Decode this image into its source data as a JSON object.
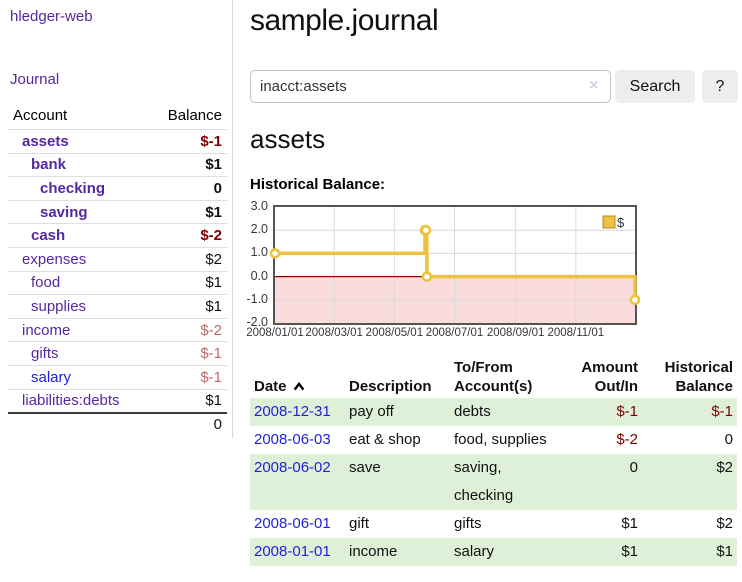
{
  "brand": "hledger-web",
  "nav": {
    "journal": "Journal"
  },
  "sidebar": {
    "header": {
      "account": "Account",
      "balance": "Balance"
    },
    "accounts": [
      {
        "name": "assets",
        "indent": 1,
        "bold": true,
        "link_color": "purple",
        "balance": "$-1",
        "balance_class": "neg-strong"
      },
      {
        "name": "bank",
        "indent": 2,
        "bold": true,
        "link_color": "purple",
        "balance": "$1",
        "balance_class": ""
      },
      {
        "name": "checking",
        "indent": 3,
        "bold": true,
        "link_color": "purple",
        "balance": "0",
        "balance_class": ""
      },
      {
        "name": "saving",
        "indent": 3,
        "bold": true,
        "link_color": "purple",
        "balance": "$1",
        "balance_class": ""
      },
      {
        "name": "cash",
        "indent": 2,
        "bold": true,
        "link_color": "purple",
        "balance": "$-2",
        "balance_class": "neg-strong"
      },
      {
        "name": "expenses",
        "indent": 1,
        "bold": false,
        "link_color": "purple",
        "balance": "$2",
        "balance_class": ""
      },
      {
        "name": "food",
        "indent": 2,
        "bold": false,
        "link_color": "purple",
        "balance": "$1",
        "balance_class": ""
      },
      {
        "name": "supplies",
        "indent": 2,
        "bold": false,
        "link_color": "purple",
        "balance": "$1",
        "balance_class": ""
      },
      {
        "name": "income",
        "indent": 1,
        "bold": false,
        "link_color": "purple",
        "balance": "$-2",
        "balance_class": "neg-soft"
      },
      {
        "name": "gifts",
        "indent": 2,
        "bold": false,
        "link_color": "purple",
        "balance": "$-1",
        "balance_class": "neg-soft"
      },
      {
        "name": "salary",
        "indent": 2,
        "bold": false,
        "link_color": "blue",
        "balance": "$-1",
        "balance_class": "neg-soft"
      },
      {
        "name": "liabilities:debts",
        "indent": 1,
        "bold": false,
        "link_color": "purple",
        "balance": "$1",
        "balance_class": ""
      }
    ],
    "total": "0"
  },
  "main": {
    "title": "sample.journal",
    "account_title": "assets",
    "chart_heading": "Historical Balance:"
  },
  "search": {
    "value": "inacct:assets",
    "clear_icon": "×",
    "button_label": "Search",
    "help_label": "?"
  },
  "chart_data": {
    "type": "line",
    "style": "step",
    "title": "Historical Balance",
    "series": [
      {
        "name": "$",
        "color": "#edc240",
        "points": [
          [
            "2008-01-01",
            1
          ],
          [
            "2008-06-01",
            2
          ],
          [
            "2008-06-02",
            2
          ],
          [
            "2008-06-03",
            0
          ],
          [
            "2008-12-31",
            -1
          ]
        ]
      }
    ],
    "x_range": [
      "2008-01-01",
      "2008-12-31"
    ],
    "x_ticks": [
      "2008/01/01",
      "2008/03/01",
      "2008/05/01",
      "2008/07/01",
      "2008/09/01",
      "2008/11/01"
    ],
    "y_ticks": [
      "3.0",
      "2.0",
      "1.0",
      "0.0",
      "-1.0",
      "-2.0"
    ],
    "ylim": [
      -2,
      3
    ],
    "grid": true,
    "legend": {
      "position": "top-right",
      "label": "$"
    },
    "negative_region_color": "#fbdcdc",
    "zero_line_color": "#8b0000",
    "gridline_color": "#d9d9d9",
    "border_color": "#545454"
  },
  "register": {
    "columns": [
      {
        "label": "Date",
        "sort": "asc",
        "align": "left"
      },
      {
        "label": "Description",
        "align": "left"
      },
      {
        "label": "To/From Account(s)",
        "align": "left"
      },
      {
        "label": "Amount Out/In",
        "align": "right"
      },
      {
        "label": "Historical Balance",
        "align": "right"
      }
    ],
    "rows": [
      {
        "date": "2008-12-31",
        "description": "pay off",
        "accounts": "debts",
        "amount": "$-1",
        "amount_class": "neg-strong",
        "balance": "$-1",
        "balance_class": "neg-strong",
        "shaded": true
      },
      {
        "date": "2008-06-03",
        "description": "eat & shop",
        "accounts": "food, supplies",
        "amount": "$-2",
        "amount_class": "neg-strong",
        "balance": "0",
        "balance_class": "",
        "shaded": false
      },
      {
        "date": "2008-06-02",
        "description": "save",
        "accounts": "saving, checking",
        "amount": "0",
        "amount_class": "",
        "balance": "$2",
        "balance_class": "",
        "shaded": true
      },
      {
        "date": "2008-06-01",
        "description": "gift",
        "accounts": "gifts",
        "amount": "$1",
        "amount_class": "",
        "balance": "$2",
        "balance_class": "",
        "shaded": false
      },
      {
        "date": "2008-01-01",
        "description": "income",
        "accounts": "salary",
        "amount": "$1",
        "amount_class": "",
        "balance": "$1",
        "balance_class": "",
        "shaded": true
      }
    ],
    "row_shade_color": "#dff0d8"
  },
  "colors": {
    "link_purple": "#5528a0",
    "link_blue": "#2320df",
    "negative_strong": "#7d0000",
    "negative_soft": "#be6969",
    "accent_gold": "#edc240"
  }
}
